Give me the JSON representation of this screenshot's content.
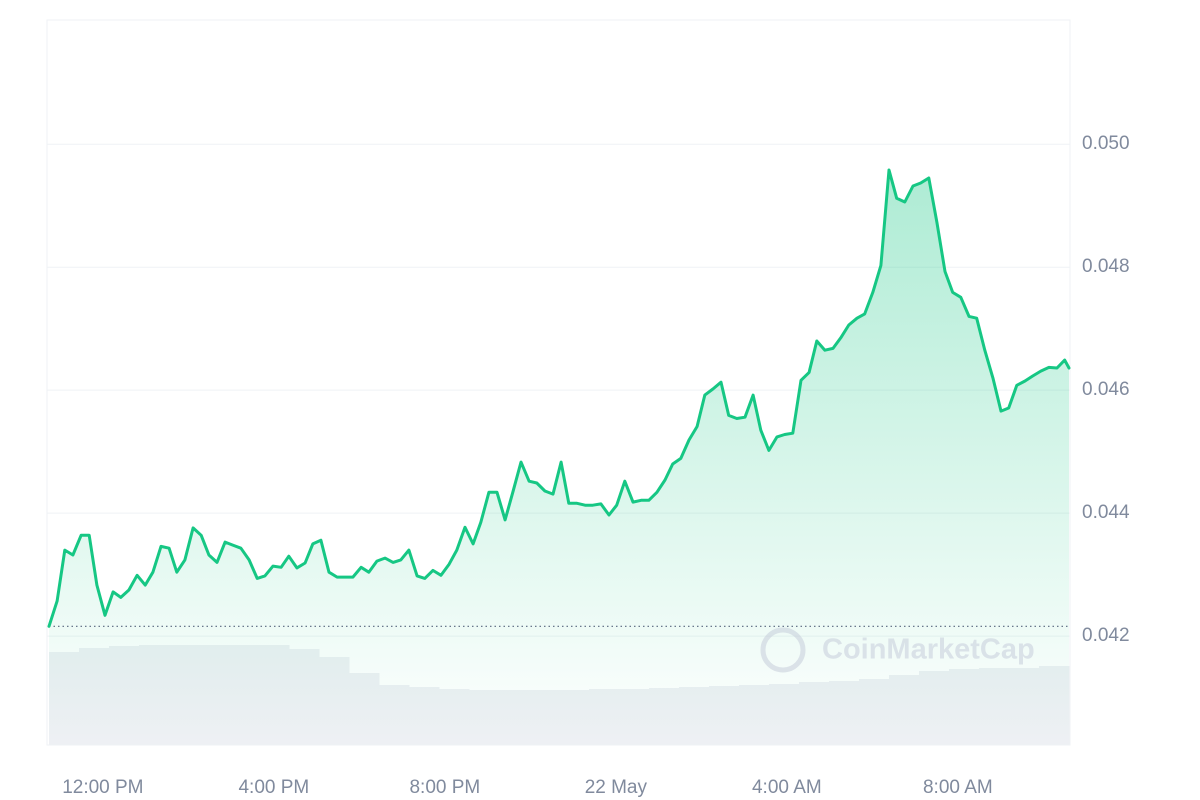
{
  "chart_data": {
    "type": "line",
    "color": "#16c784",
    "x": [
      10.74,
      10.93,
      11.11,
      11.3,
      11.49,
      11.68,
      11.86,
      12.05,
      12.24,
      12.42,
      12.61,
      12.8,
      12.99,
      13.17,
      13.36,
      13.55,
      13.73,
      13.92,
      14.11,
      14.3,
      14.48,
      14.67,
      14.86,
      15.04,
      15.23,
      15.42,
      15.61,
      15.79,
      15.98,
      16.17,
      16.35,
      16.54,
      16.73,
      16.91,
      17.1,
      17.29,
      17.48,
      17.66,
      17.85,
      18.04,
      18.22,
      18.41,
      18.6,
      18.79,
      18.97,
      19.16,
      19.35,
      19.53,
      19.72,
      19.91,
      20.1,
      20.28,
      20.47,
      20.66,
      20.84,
      21.03,
      21.22,
      21.41,
      21.59,
      21.78,
      21.97,
      22.15,
      22.34,
      22.53,
      22.72,
      22.9,
      23.09,
      23.28,
      23.46,
      23.65,
      23.84,
      24.02,
      24.21,
      24.4,
      24.59,
      24.77,
      24.96,
      25.15,
      25.33,
      25.52,
      25.71,
      25.9,
      26.08,
      26.27,
      26.46,
      26.64,
      26.83,
      27.02,
      27.21,
      27.39,
      27.58,
      27.77,
      27.95,
      28.14,
      28.33,
      28.52,
      28.7,
      28.89,
      29.08,
      29.26,
      29.45,
      29.64,
      29.82,
      30.01,
      30.2,
      30.39,
      30.57,
      30.76,
      30.95,
      31.13,
      31.32,
      31.51,
      31.7,
      31.88,
      32.07,
      32.26,
      32.44,
      32.63,
      32.82,
      33.01,
      33.19,
      33.38,
      33.57,
      33.75,
      33.94,
      34.13,
      34.32,
      34.5,
      34.6
    ],
    "values": [
      0.04216,
      0.04257,
      0.0434,
      0.04332,
      0.04364,
      0.04364,
      0.04283,
      0.04234,
      0.04272,
      0.04263,
      0.04275,
      0.04299,
      0.04283,
      0.04304,
      0.04346,
      0.04343,
      0.04304,
      0.04324,
      0.04376,
      0.04364,
      0.04332,
      0.0432,
      0.04353,
      0.04348,
      0.04343,
      0.04324,
      0.04294,
      0.04298,
      0.04314,
      0.04312,
      0.0433,
      0.04311,
      0.04319,
      0.0435,
      0.04356,
      0.04304,
      0.04296,
      0.04296,
      0.04296,
      0.04312,
      0.04304,
      0.04322,
      0.04327,
      0.0432,
      0.04324,
      0.0434,
      0.04298,
      0.04294,
      0.04307,
      0.04299,
      0.04317,
      0.0434,
      0.04377,
      0.0435,
      0.04385,
      0.04434,
      0.04434,
      0.04389,
      0.04434,
      0.04483,
      0.04452,
      0.04449,
      0.04436,
      0.04431,
      0.04483,
      0.04416,
      0.04416,
      0.04413,
      0.04413,
      0.04415,
      0.04397,
      0.04413,
      0.04452,
      0.04418,
      0.04421,
      0.04421,
      0.04434,
      0.04454,
      0.0448,
      0.04489,
      0.04519,
      0.04541,
      0.04592,
      0.04602,
      0.04613,
      0.04559,
      0.04554,
      0.04556,
      0.04592,
      0.04535,
      0.04502,
      0.04524,
      0.04528,
      0.0453,
      0.04616,
      0.04629,
      0.0468,
      0.04665,
      0.04668,
      0.04685,
      0.04706,
      0.04717,
      0.04724,
      0.04759,
      0.04803,
      0.04958,
      0.04912,
      0.04906,
      0.04932,
      0.04937,
      0.04945,
      0.04873,
      0.04793,
      0.04759,
      0.04751,
      0.0472,
      0.04717,
      0.04665,
      0.0462,
      0.04566,
      0.04571,
      0.04608,
      0.04615,
      0.04623,
      0.04631,
      0.04637,
      0.04636,
      0.04649,
      0.04636
    ],
    "reference_line": 0.04216,
    "xlim": [
      10.74,
      34.6
    ],
    "xticks": [
      {
        "value": 12,
        "label": "12:00 PM"
      },
      {
        "value": 16,
        "label": "4:00 PM"
      },
      {
        "value": 20,
        "label": "8:00 PM"
      },
      {
        "value": 24,
        "label": "22 May"
      },
      {
        "value": 28,
        "label": "4:00 AM"
      },
      {
        "value": 32,
        "label": "8:00 AM"
      }
    ],
    "ylim": [
      0.04023,
      0.05202
    ],
    "yticks": [
      {
        "value": 0.042,
        "label": "0.042"
      },
      {
        "value": 0.044,
        "label": "0.044"
      },
      {
        "value": 0.046,
        "label": "0.046"
      },
      {
        "value": 0.048,
        "label": "0.048"
      },
      {
        "value": 0.05,
        "label": "0.050"
      }
    ],
    "grid": true,
    "volume": {
      "values": [
        93,
        97,
        99,
        100,
        100,
        100,
        100,
        100,
        96,
        88,
        72,
        60,
        58,
        56,
        55,
        55,
        55,
        55,
        56,
        56,
        57,
        58,
        59,
        60,
        61,
        63,
        64,
        66,
        70,
        74,
        76,
        77,
        77,
        79
      ],
      "ylim": [
        0,
        100
      ],
      "color": "#eef0f4"
    },
    "watermark": "CoinMarketCap"
  }
}
